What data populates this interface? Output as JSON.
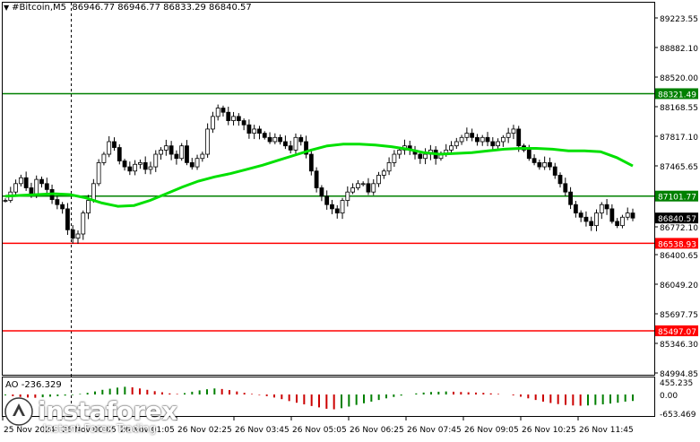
{
  "header": {
    "symbol": "#Bitcoin,M5",
    "ohlc": "86946.77 86946.77 86833.29 86840.57"
  },
  "price_axis": {
    "ticks": [
      "89223.55",
      "88882.10",
      "88520.00",
      "88168.55",
      "87817.10",
      "87465.65",
      "87114.20",
      "86772.10",
      "86400.65",
      "86049.20",
      "85697.75",
      "85346.30",
      "84994.85"
    ],
    "levels": [
      {
        "label": "88321.49",
        "color": "#008000"
      },
      {
        "label": "87101.77",
        "color": "#008000"
      },
      {
        "label": "86538.93",
        "color": "#ff0000"
      },
      {
        "label": "85497.07",
        "color": "#ff0000"
      }
    ],
    "current": {
      "label": "86840.57"
    }
  },
  "time_axis": {
    "labels": [
      "25 Nov 2024",
      "26 Nov 00:05",
      "26 Nov 01:05",
      "26 Nov 02:25",
      "26 Nov 03:45",
      "26 Nov 05:05",
      "26 Nov 06:25",
      "26 Nov 07:45",
      "26 Nov 09:05",
      "26 Nov 10:25",
      "26 Nov 11:45"
    ]
  },
  "indicator": {
    "label": "AO -236.329",
    "ticks": [
      "455.235",
      "0.00",
      "-653.469"
    ]
  },
  "watermark": {
    "brand": "instaforex",
    "tagline": "Instant Forex Trading"
  },
  "colors": {
    "bull": "#000000",
    "bear": "#000000",
    "ma": "#00e000",
    "support": "#ff0000",
    "resistance": "#008000",
    "ao_up": "#008000",
    "ao_down": "#cc0000"
  },
  "chart_data": {
    "type": "candlestick",
    "symbol": "#Bitcoin",
    "timeframe": "M5",
    "ylim": [
      84994.85,
      89223.55
    ],
    "horizontal_levels": [
      88321.49,
      87101.77,
      86538.93,
      85497.07
    ],
    "last_price": 86840.57,
    "close_series": [
      87050,
      87150,
      87250,
      87320,
      87200,
      87120,
      87300,
      87250,
      87180,
      87060,
      87000,
      86950,
      86700,
      86600,
      86650,
      86900,
      87050,
      87250,
      87500,
      87600,
      87750,
      87680,
      87520,
      87450,
      87400,
      87480,
      87500,
      87420,
      87450,
      87600,
      87650,
      87700,
      87600,
      87550,
      87700,
      87500,
      87450,
      87550,
      87600,
      87900,
      88050,
      88150,
      88100,
      88000,
      88050,
      88000,
      87950,
      87850,
      87900,
      87850,
      87800,
      87750,
      87800,
      87750,
      87700,
      87650,
      87800,
      87750,
      87600,
      87400,
      87200,
      87100,
      87000,
      86950,
      86900,
      87050,
      87150,
      87200,
      87250,
      87250,
      87150,
      87250,
      87350,
      87400,
      87500,
      87600,
      87650,
      87700,
      87650,
      87600,
      87550,
      87600,
      87650,
      87550,
      87600,
      87650,
      87700,
      87750,
      87800,
      87850,
      87800,
      87750,
      87800,
      87750,
      87700,
      87750,
      87800,
      87850,
      87900,
      87700,
      87650,
      87550,
      87500,
      87450,
      87500,
      87450,
      87350,
      87250,
      87150,
      87000,
      86900,
      86850,
      86800,
      86750,
      86900,
      87000,
      86950,
      86800,
      86750,
      86850,
      86900,
      86840
    ],
    "ma_series": [
      87100,
      87110,
      87120,
      87130,
      87120,
      87080,
      87020,
      86980,
      86990,
      87050,
      87130,
      87210,
      87280,
      87330,
      87370,
      87420,
      87470,
      87530,
      87590,
      87650,
      87700,
      87720,
      87720,
      87710,
      87690,
      87660,
      87620,
      87600,
      87610,
      87620,
      87640,
      87660,
      87670,
      87670,
      87660,
      87640,
      87640,
      87630,
      87560,
      87460
    ],
    "ao_values": [
      -30,
      -60,
      -90,
      -110,
      -120,
      -100,
      -80,
      -60,
      -40,
      -20,
      20,
      60,
      110,
      170,
      210,
      250,
      280,
      260,
      220,
      170,
      120,
      80,
      40,
      20,
      50,
      100,
      150,
      190,
      220,
      200,
      160,
      110,
      60,
      20,
      -20,
      -60,
      -110,
      -170,
      -240,
      -300,
      -360,
      -420,
      -470,
      -520,
      -540,
      -500,
      -440,
      -380,
      -320,
      -260,
      -200,
      -140,
      -90,
      -40,
      0,
      40,
      70,
      90,
      100,
      110,
      100,
      90,
      80,
      70,
      60,
      40,
      20,
      0,
      -30,
      -80,
      -140,
      -200,
      -260,
      -310,
      -350,
      -380,
      -400,
      -410,
      -400,
      -380,
      -360,
      -330,
      -300,
      -260,
      -236
    ]
  }
}
